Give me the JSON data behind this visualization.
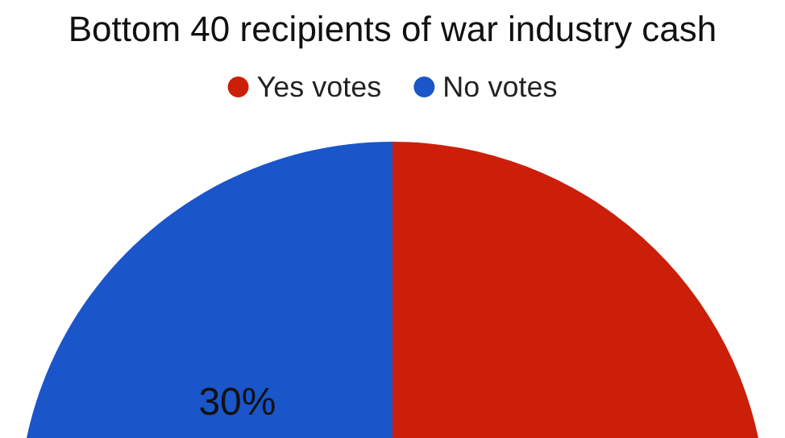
{
  "chart_data": {
    "type": "pie",
    "title": "Bottom 40 recipients of war industry cash",
    "categories": [
      "Yes votes",
      "No votes"
    ],
    "values": [
      70,
      30
    ],
    "colors": [
      "#cc1f0a",
      "#1a55c9"
    ],
    "value_labels": [
      null,
      "30%"
    ],
    "legend": "top"
  }
}
